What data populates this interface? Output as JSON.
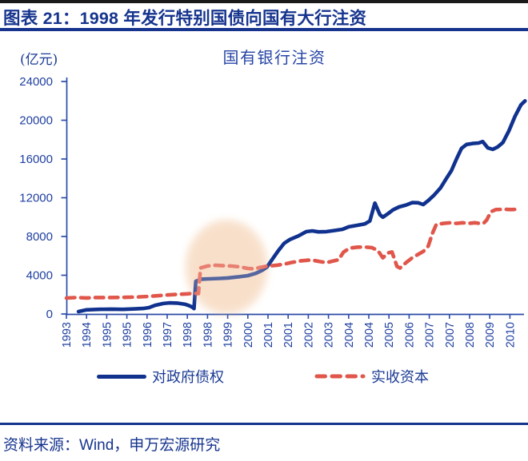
{
  "header": {
    "title": "图表 21：1998 年发行特别国债向国有大行注资"
  },
  "chart": {
    "unit": "(亿元)",
    "title": "国有银行注资"
  },
  "chart_data": {
    "type": "line",
    "title": "国有银行注资",
    "unit_label": "(亿元)",
    "x_labels": [
      "1993",
      "1994",
      "1995",
      "1995",
      "1996",
      "1997",
      "1998",
      "1998",
      "1999",
      "2000",
      "2001",
      "2001",
      "2002",
      "2003",
      "2004",
      "2004",
      "2005",
      "2006",
      "2007",
      "2007",
      "2008",
      "2009",
      "2010"
    ],
    "y_ticks": [
      0,
      4000,
      8000,
      12000,
      16000,
      20000,
      24000
    ],
    "ylim": [
      0,
      24000
    ],
    "grid": false,
    "legend_position": "bottom",
    "colors": {
      "claims_line": "#10328e",
      "paidin_line": "#e1564b",
      "axis": "#2b4ba8",
      "tick_text": "#1e3fa0",
      "highlight_fill": "#f8dfc9"
    },
    "highlight": {
      "shape": "ellipse",
      "center_x_index": 7.95,
      "center_value": 4850,
      "radius_x_index": 2.0,
      "radius_value": 4800
    },
    "series": [
      {
        "name": "对政府债权",
        "style": "solid",
        "color": "#10328e",
        "points": [
          [
            0.6,
            250
          ],
          [
            1,
            430
          ],
          [
            1.6,
            480
          ],
          [
            2.2,
            500
          ],
          [
            2.8,
            480
          ],
          [
            3.4,
            530
          ],
          [
            3.8,
            570
          ],
          [
            4.1,
            660
          ],
          [
            4.4,
            900
          ],
          [
            4.8,
            1080
          ],
          [
            5.1,
            1150
          ],
          [
            5.5,
            1120
          ],
          [
            5.9,
            1000
          ],
          [
            6.1,
            850
          ],
          [
            6.25,
            700
          ],
          [
            6.33,
            560
          ],
          [
            6.42,
            3380
          ],
          [
            6.7,
            3600
          ],
          [
            7.1,
            3630
          ],
          [
            7.6,
            3670
          ],
          [
            8,
            3720
          ],
          [
            8.5,
            3830
          ],
          [
            9,
            3960
          ],
          [
            9.4,
            4200
          ],
          [
            9.7,
            4500
          ],
          [
            9.95,
            4850
          ],
          [
            10.2,
            5600
          ],
          [
            10.5,
            6500
          ],
          [
            10.8,
            7300
          ],
          [
            11.1,
            7700
          ],
          [
            11.5,
            8050
          ],
          [
            11.9,
            8500
          ],
          [
            12.2,
            8580
          ],
          [
            12.5,
            8480
          ],
          [
            12.9,
            8500
          ],
          [
            13.3,
            8620
          ],
          [
            13.7,
            8740
          ],
          [
            14,
            9000
          ],
          [
            14.4,
            9150
          ],
          [
            14.8,
            9300
          ],
          [
            15.05,
            9600
          ],
          [
            15.3,
            11450
          ],
          [
            15.55,
            10250
          ],
          [
            15.7,
            10000
          ],
          [
            15.95,
            10350
          ],
          [
            16.2,
            10750
          ],
          [
            16.5,
            11050
          ],
          [
            16.85,
            11250
          ],
          [
            17.15,
            11500
          ],
          [
            17.45,
            11480
          ],
          [
            17.7,
            11300
          ],
          [
            17.95,
            11700
          ],
          [
            18.25,
            12300
          ],
          [
            18.55,
            13000
          ],
          [
            18.85,
            14000
          ],
          [
            19.1,
            14800
          ],
          [
            19.35,
            16000
          ],
          [
            19.6,
            17100
          ],
          [
            19.85,
            17500
          ],
          [
            20.15,
            17600
          ],
          [
            20.45,
            17650
          ],
          [
            20.65,
            17800
          ],
          [
            20.9,
            17150
          ],
          [
            21.15,
            17000
          ],
          [
            21.4,
            17250
          ],
          [
            21.65,
            17700
          ],
          [
            21.95,
            18900
          ],
          [
            22.25,
            20400
          ],
          [
            22.55,
            21600
          ],
          [
            22.75,
            22000
          ]
        ]
      },
      {
        "name": "实收资本",
        "style": "dashed",
        "color": "#e1564b",
        "points": [
          [
            0,
            1650
          ],
          [
            0.5,
            1700
          ],
          [
            1,
            1660
          ],
          [
            1.5,
            1700
          ],
          [
            2,
            1690
          ],
          [
            2.5,
            1710
          ],
          [
            3,
            1720
          ],
          [
            3.5,
            1760
          ],
          [
            4,
            1810
          ],
          [
            4.5,
            1880
          ],
          [
            5,
            1960
          ],
          [
            5.5,
            2030
          ],
          [
            6,
            2080
          ],
          [
            6.3,
            2130
          ],
          [
            6.55,
            2100
          ],
          [
            6.65,
            4750
          ],
          [
            7,
            4960
          ],
          [
            7.4,
            5030
          ],
          [
            7.8,
            4980
          ],
          [
            8.2,
            4950
          ],
          [
            8.6,
            4870
          ],
          [
            9,
            4700
          ],
          [
            9.3,
            4660
          ],
          [
            9.6,
            4800
          ],
          [
            10,
            4950
          ],
          [
            10.4,
            5020
          ],
          [
            10.8,
            5150
          ],
          [
            11.2,
            5330
          ],
          [
            11.6,
            5480
          ],
          [
            12,
            5560
          ],
          [
            12.3,
            5520
          ],
          [
            12.6,
            5400
          ],
          [
            12.9,
            5300
          ],
          [
            13.2,
            5450
          ],
          [
            13.5,
            5600
          ],
          [
            13.75,
            6400
          ],
          [
            14.05,
            6800
          ],
          [
            14.45,
            6900
          ],
          [
            14.85,
            6900
          ],
          [
            15.15,
            6850
          ],
          [
            15.45,
            6550
          ],
          [
            15.7,
            5800
          ],
          [
            15.95,
            6300
          ],
          [
            16.15,
            6400
          ],
          [
            16.4,
            4900
          ],
          [
            16.55,
            4750
          ],
          [
            16.85,
            5300
          ],
          [
            17.15,
            5800
          ],
          [
            17.45,
            6150
          ],
          [
            17.7,
            6450
          ],
          [
            17.95,
            7000
          ],
          [
            18.15,
            8300
          ],
          [
            18.35,
            9250
          ],
          [
            18.7,
            9350
          ],
          [
            19.05,
            9420
          ],
          [
            19.35,
            9350
          ],
          [
            19.65,
            9420
          ],
          [
            19.95,
            9350
          ],
          [
            20.25,
            9420
          ],
          [
            20.5,
            9350
          ],
          [
            20.7,
            9380
          ],
          [
            20.85,
            9700
          ],
          [
            21.05,
            10550
          ],
          [
            21.3,
            10780
          ],
          [
            21.7,
            10800
          ],
          [
            22.1,
            10780
          ],
          [
            22.35,
            10800
          ]
        ]
      }
    ]
  },
  "footer": {
    "source": "资料来源：Wind，申万宏源研究"
  }
}
